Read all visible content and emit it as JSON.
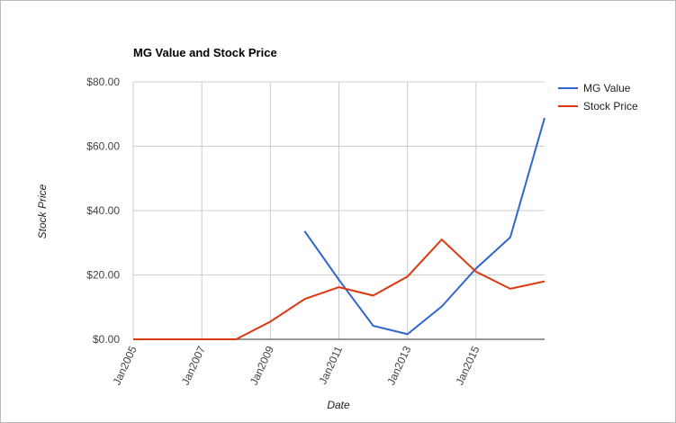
{
  "chart_data": {
    "type": "line",
    "title": "MG Value and Stock Price",
    "x_label": "Date",
    "y_label": "Stock Price",
    "x": [
      "2005-01",
      "2006-01",
      "2007-01",
      "2008-01",
      "2009-01",
      "2010-01",
      "2011-01",
      "2012-01",
      "2013-01",
      "2014-01",
      "2015-01",
      "2016-01",
      "2017-01"
    ],
    "series": [
      {
        "name": "MG Value",
        "color": "#3366cc",
        "values": [
          null,
          null,
          null,
          null,
          null,
          33.6,
          18.5,
          4.2,
          1.6,
          10.2,
          22,
          31.7,
          68.8
        ]
      },
      {
        "name": "Stock Price",
        "color": "#dc3912",
        "values": [
          0,
          0,
          0,
          0,
          5.5,
          12.5,
          16.2,
          13.6,
          19.5,
          31,
          21,
          15.7,
          18
        ]
      }
    ],
    "xlim": [
      "2005-01",
      "2017-01"
    ],
    "xticks": [
      {
        "value": "2005-01",
        "label": "Jan2005"
      },
      {
        "value": "2007-01",
        "label": "Jan2007"
      },
      {
        "value": "2009-01",
        "label": "Jan2009"
      },
      {
        "value": "2011-01",
        "label": "Jan2011"
      },
      {
        "value": "2013-01",
        "label": "Jan2013"
      },
      {
        "value": "2015-01",
        "label": "Jan2015"
      }
    ],
    "ylim": [
      0,
      80
    ],
    "yticks": [
      {
        "value": 0,
        "label": "$0.00"
      },
      {
        "value": 20,
        "label": "$20.00"
      },
      {
        "value": 40,
        "label": "$40.00"
      },
      {
        "value": 60,
        "label": "$60.00"
      },
      {
        "value": 80,
        "label": "$80.00"
      }
    ],
    "grid": true,
    "legend": "right"
  }
}
